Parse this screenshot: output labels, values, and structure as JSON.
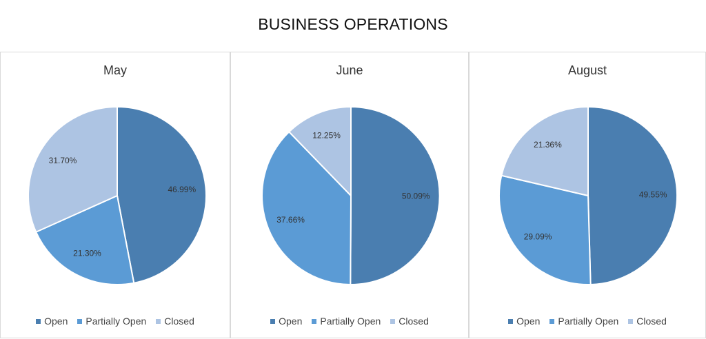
{
  "chart_data": {
    "type": "pie",
    "title": "BUSINESS OPERATIONS",
    "legend_placement": "bottom",
    "categories": [
      "Open",
      "Partially Open",
      "Closed"
    ],
    "colors": {
      "Open": "#4a7eb0",
      "Partially Open": "#5b9bd5",
      "Closed": "#adc4e3"
    },
    "charts": [
      {
        "title": "May",
        "values": [
          46.99,
          21.3,
          31.7
        ],
        "labels": [
          "46.99%",
          "21.30%",
          "31.70%"
        ]
      },
      {
        "title": "June",
        "values": [
          50.09,
          37.66,
          12.25
        ],
        "labels": [
          "50.09%",
          "37.66%",
          "12.25%"
        ]
      },
      {
        "title": "August",
        "values": [
          49.55,
          29.09,
          21.36
        ],
        "labels": [
          "49.55%",
          "29.09%",
          "21.36%"
        ]
      }
    ]
  }
}
